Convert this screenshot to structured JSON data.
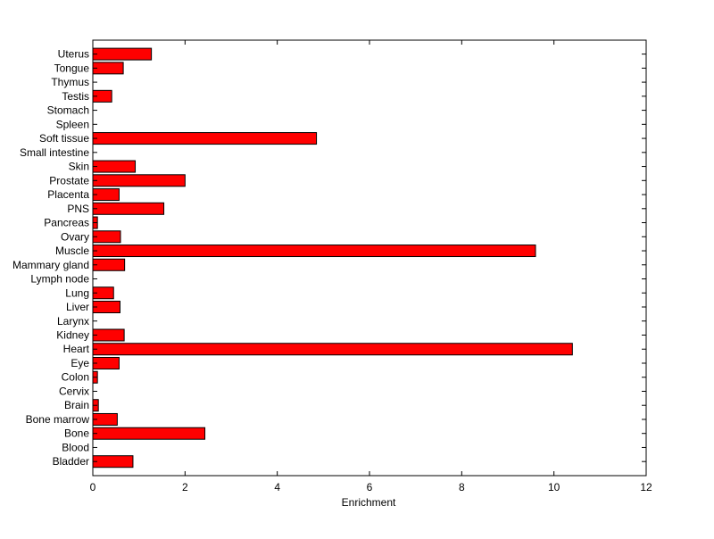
{
  "chart_data": {
    "type": "bar",
    "orientation": "horizontal",
    "title": "",
    "xlabel": "Enrichment",
    "ylabel": "",
    "xlim": [
      0,
      12
    ],
    "xticks": [
      "0",
      "2",
      "4",
      "6",
      "8",
      "10",
      "12"
    ],
    "grid": false,
    "legend": "none",
    "bar_color": "#ff0000",
    "bar_edge_color": "#000000",
    "categories": [
      "Bladder",
      "Blood",
      "Bone",
      "Bone marrow",
      "Brain",
      "Cervix",
      "Colon",
      "Eye",
      "Heart",
      "Kidney",
      "Larynx",
      "Liver",
      "Lung",
      "Lymph node",
      "Mammary gland",
      "Muscle",
      "Ovary",
      "Pancreas",
      "PNS",
      "Placenta",
      "Prostate",
      "Skin",
      "Small intestine",
      "Soft tissue",
      "Spleen",
      "Stomach",
      "Testis",
      "Thymus",
      "Tongue",
      "Uterus"
    ],
    "values": [
      0.87,
      0,
      2.43,
      0.53,
      0.12,
      0,
      0.1,
      0.57,
      10.4,
      0.68,
      0,
      0.59,
      0.45,
      0,
      0.69,
      9.6,
      0.6,
      0.1,
      1.54,
      0.57,
      2.0,
      0.92,
      0,
      4.85,
      0,
      0,
      0.41,
      0,
      0.66,
      1.27
    ]
  }
}
